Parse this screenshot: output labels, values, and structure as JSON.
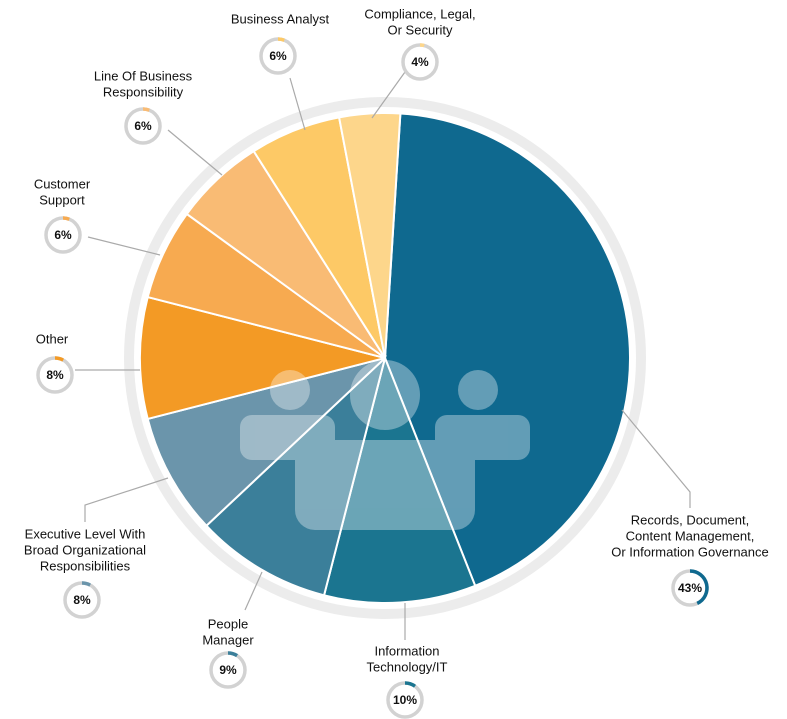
{
  "chart_data": {
    "type": "pie",
    "categories": [
      [
        "Records, Document,",
        "Content Management,",
        "Or Information Governance"
      ],
      [
        "Information",
        "Technology/IT"
      ],
      [
        "People",
        "Manager"
      ],
      [
        "Executive Level With",
        "Broad Organizational",
        "Responsibilities"
      ],
      [
        "Other"
      ],
      [
        "Customer",
        "Support"
      ],
      [
        "Line Of Business",
        "Responsibility"
      ],
      [
        "Business Analyst"
      ],
      [
        "Compliance, Legal,",
        "Or Security"
      ]
    ],
    "values": [
      43,
      10,
      9,
      8,
      8,
      6,
      6,
      6,
      4
    ],
    "value_labels": [
      "43%",
      "10%",
      "9%",
      "8%",
      "8%",
      "6%",
      "6%",
      "6%",
      "4%"
    ],
    "colors": [
      "#0f698f",
      "#1b7590",
      "#3b7f9a",
      "#6b95ab",
      "#f39a25",
      "#f7aa50",
      "#f9bb74",
      "#fdc966",
      "#fdd68b"
    ]
  }
}
